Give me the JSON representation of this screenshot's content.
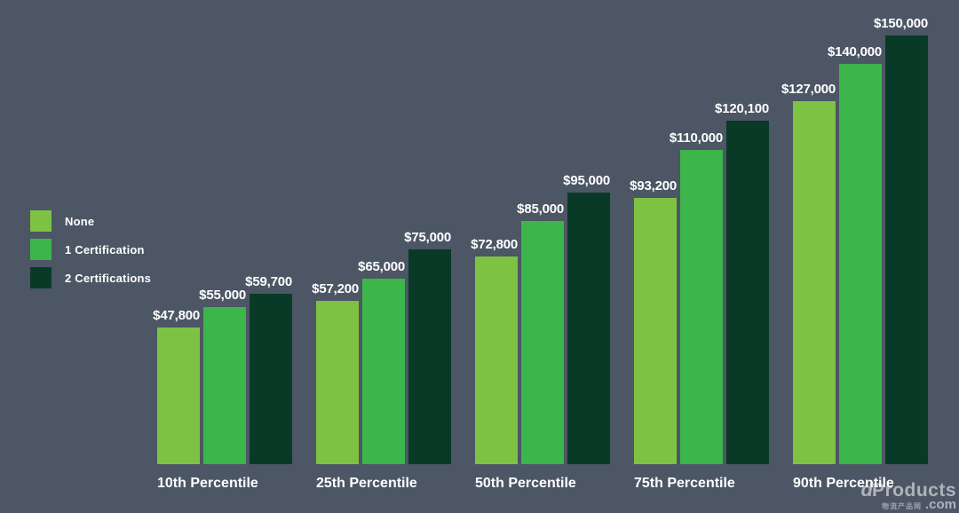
{
  "background_color": "#4C5664",
  "text_color": "#FFFFFF",
  "legend": {
    "items": [
      {
        "label": "None",
        "color": "#7EC244"
      },
      {
        "label": "1 Certification",
        "color": "#3CB54B"
      },
      {
        "label": "2 Certifications",
        "color": "#093A27"
      }
    ]
  },
  "chart_data": {
    "type": "bar",
    "categories": [
      "10th Percentile",
      "25th Percentile",
      "50th Percentile",
      "75th Percentile",
      "90th Percentile"
    ],
    "series": [
      {
        "name": "None",
        "color": "#7EC244",
        "values": [
          47800,
          57200,
          72800,
          93200,
          127000
        ]
      },
      {
        "name": "1 Certification",
        "color": "#3CB54B",
        "values": [
          55000,
          65000,
          85000,
          110000,
          140000
        ]
      },
      {
        "name": "2 Certifications",
        "color": "#093A27",
        "values": [
          59700,
          75000,
          95000,
          120100,
          150000
        ]
      }
    ],
    "value_labels": [
      [
        "$47,800",
        "$55,000",
        "$59,700"
      ],
      [
        "$57,200",
        "$65,000",
        "$75,000"
      ],
      [
        "$72,800",
        "$85,000",
        "$95,000"
      ],
      [
        "$93,200",
        "$110,000",
        "$120,100"
      ],
      [
        "$127,000",
        "$140,000",
        "$150,000"
      ]
    ],
    "title": "",
    "xlabel": "",
    "ylabel": "",
    "ylim": [
      0,
      150000
    ],
    "grid": false,
    "legend_position": "left"
  },
  "watermark": {
    "glyph": "d",
    "brand": "Products",
    "cjk": "物流产品网",
    "suffix": ".com"
  }
}
